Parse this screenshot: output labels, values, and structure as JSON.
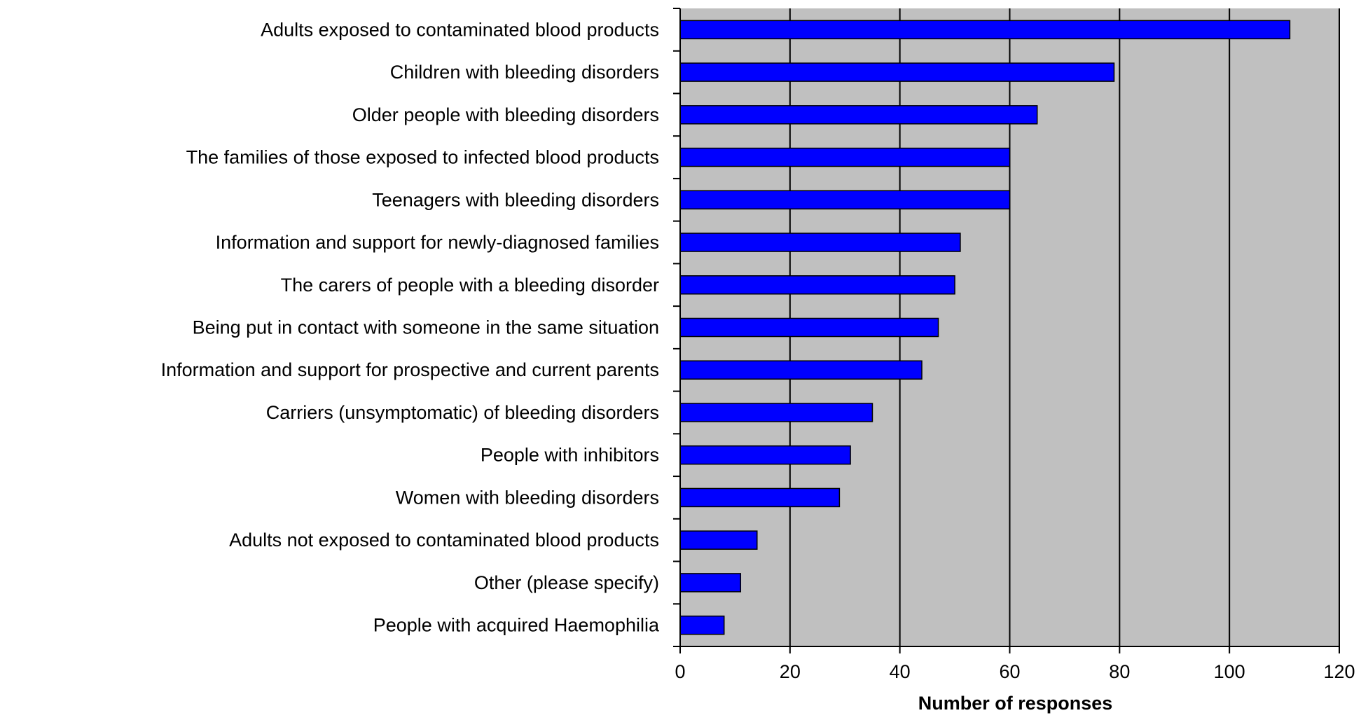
{
  "chart_data": {
    "type": "bar",
    "orientation": "horizontal",
    "categories": [
      "Adults exposed to contaminated blood products",
      "Children with bleeding disorders",
      "Older people with bleeding disorders",
      "The families of those exposed to infected blood products",
      "Teenagers with bleeding disorders",
      "Information and support for newly-diagnosed families",
      "The carers of people with a bleeding disorder",
      "Being put in contact with someone in the same situation",
      "Information and support for prospective and current parents",
      "Carriers (unsymptomatic) of bleeding disorders",
      "People with inhibitors",
      "Women with bleeding disorders",
      "Adults not exposed to contaminated blood products",
      "Other (please specify)",
      "People with acquired Haemophilia"
    ],
    "values": [
      111,
      79,
      65,
      60,
      60,
      51,
      50,
      47,
      44,
      35,
      31,
      29,
      14,
      11,
      8
    ],
    "title": "",
    "xlabel": "Number of responses",
    "ylabel": "",
    "xlim": [
      0,
      120
    ],
    "xticks": [
      0,
      20,
      40,
      60,
      80,
      100,
      120
    ],
    "grid": "vertical",
    "legend": "none",
    "colors": {
      "bar_fill": "#0000ff",
      "bar_stroke": "#000000",
      "plot_background": "#c0c0c0",
      "gridline": "#000000"
    }
  }
}
